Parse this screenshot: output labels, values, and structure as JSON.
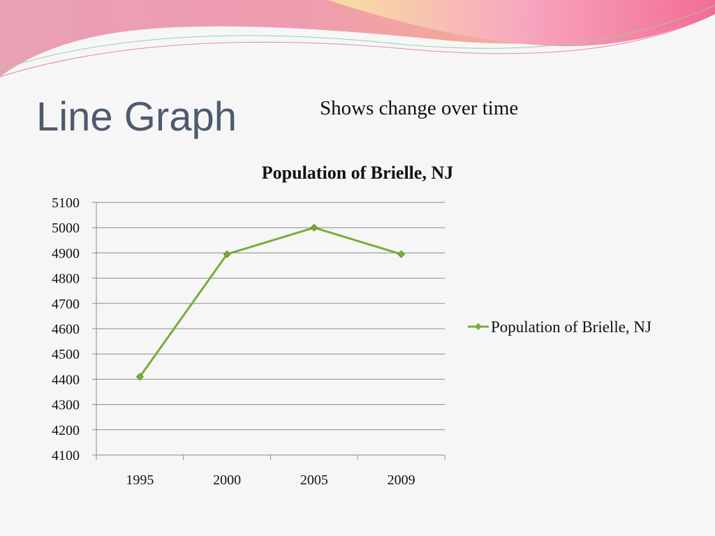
{
  "slide": {
    "title": "Line Graph",
    "subtitle": "Shows change over time"
  },
  "chart_data": {
    "type": "line",
    "title": "Population of Brielle, NJ",
    "categories": [
      "1995",
      "2000",
      "2005",
      "2009"
    ],
    "series": [
      {
        "name": "Population of Brielle, NJ",
        "color": "#77ac3a",
        "values": [
          4410,
          4895,
          5000,
          4895
        ]
      }
    ],
    "ylim": [
      4100,
      5100
    ],
    "yticks": [
      4100,
      4200,
      4300,
      4400,
      4500,
      4600,
      4700,
      4800,
      4900,
      5000,
      5100
    ],
    "grid": true,
    "legend": "right"
  }
}
